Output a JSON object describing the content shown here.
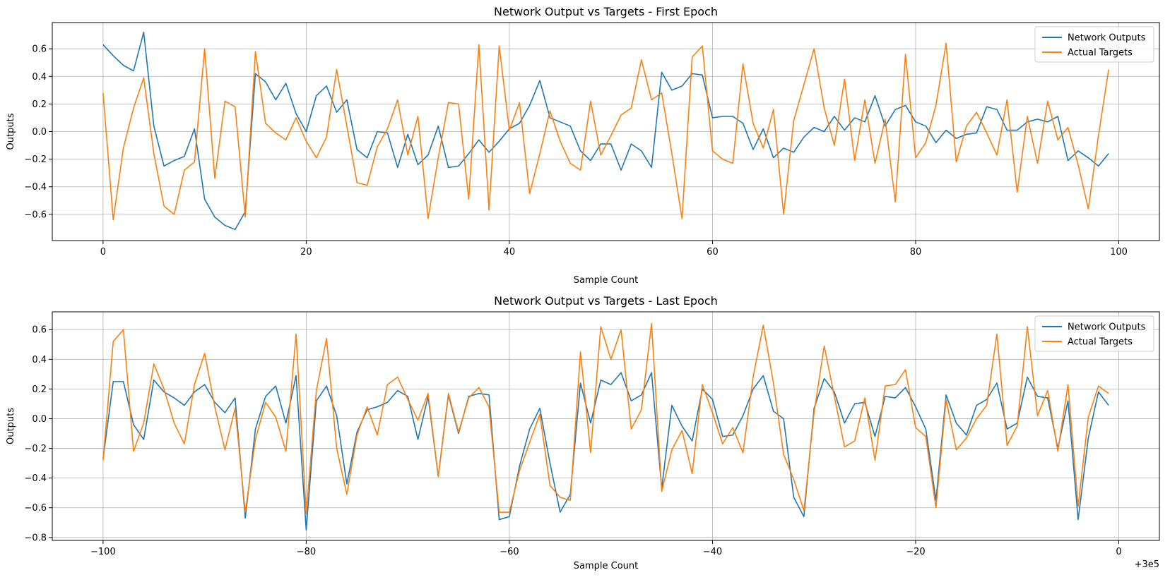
{
  "chart_data": [
    {
      "type": "line",
      "title": "Network Output vs Targets - First Epoch",
      "xlabel": "Sample Count",
      "ylabel": "Outputs",
      "xlim": [
        -5,
        104
      ],
      "ylim": [
        -0.79,
        0.79
      ],
      "xticks": [
        0,
        20,
        40,
        60,
        80,
        100
      ],
      "yticks": [
        -0.6,
        -0.4,
        -0.2,
        0.0,
        0.2,
        0.4,
        0.6
      ],
      "x_offset_label": "",
      "grid": true,
      "legend": "top-right",
      "x": [
        0,
        1,
        2,
        3,
        4,
        5,
        6,
        7,
        8,
        9,
        10,
        11,
        12,
        13,
        14,
        15,
        16,
        17,
        18,
        19,
        20,
        21,
        22,
        23,
        24,
        25,
        26,
        27,
        28,
        29,
        30,
        31,
        32,
        33,
        34,
        35,
        36,
        37,
        38,
        39,
        40,
        41,
        42,
        43,
        44,
        45,
        46,
        47,
        48,
        49,
        50,
        51,
        52,
        53,
        54,
        55,
        56,
        57,
        58,
        59,
        60,
        61,
        62,
        63,
        64,
        65,
        66,
        67,
        68,
        69,
        70,
        71,
        72,
        73,
        74,
        75,
        76,
        77,
        78,
        79,
        80,
        81,
        82,
        83,
        84,
        85,
        86,
        87,
        88,
        89,
        90,
        91,
        92,
        93,
        94,
        95,
        96,
        97,
        98,
        99
      ],
      "series": [
        {
          "name": "Network Outputs",
          "color": "#1f77b4",
          "values": [
            0.63,
            0.55,
            0.48,
            0.44,
            0.72,
            0.04,
            -0.25,
            -0.21,
            -0.18,
            0.02,
            -0.49,
            -0.62,
            -0.68,
            -0.71,
            -0.58,
            0.42,
            0.36,
            0.23,
            0.35,
            0.13,
            0.0,
            0.26,
            0.33,
            0.14,
            0.23,
            -0.13,
            -0.19,
            0.0,
            -0.01,
            -0.26,
            -0.02,
            -0.24,
            -0.17,
            0.04,
            -0.26,
            -0.25,
            -0.16,
            -0.06,
            -0.15,
            -0.07,
            0.02,
            0.06,
            0.19,
            0.37,
            0.1,
            0.07,
            0.04,
            -0.14,
            -0.21,
            -0.09,
            -0.09,
            -0.28,
            -0.09,
            -0.14,
            -0.26,
            0.43,
            0.3,
            0.33,
            0.42,
            0.41,
            0.1,
            0.11,
            0.11,
            0.06,
            -0.13,
            0.02,
            -0.19,
            -0.12,
            -0.15,
            -0.04,
            0.03,
            0.0,
            0.11,
            0.01,
            0.1,
            0.07,
            0.26,
            0.04,
            0.16,
            0.19,
            0.07,
            0.04,
            -0.08,
            0.01,
            -0.05,
            -0.02,
            -0.01,
            0.18,
            0.16,
            0.01,
            0.01,
            0.07,
            0.09,
            0.07,
            0.11,
            -0.21,
            -0.14,
            -0.19,
            -0.25,
            -0.16
          ]
        },
        {
          "name": "Actual Targets",
          "color": "#ff7f0e",
          "values": [
            0.28,
            -0.64,
            -0.12,
            0.17,
            0.39,
            -0.16,
            -0.54,
            -0.6,
            -0.28,
            -0.22,
            0.6,
            -0.34,
            0.22,
            0.18,
            -0.62,
            0.58,
            0.06,
            -0.01,
            -0.06,
            0.1,
            -0.07,
            -0.19,
            -0.04,
            0.45,
            0.04,
            -0.37,
            -0.39,
            -0.11,
            0.02,
            0.23,
            -0.17,
            0.11,
            -0.63,
            -0.19,
            0.21,
            0.2,
            -0.49,
            0.63,
            -0.57,
            0.62,
            0.01,
            0.21,
            -0.45,
            -0.16,
            0.15,
            -0.07,
            -0.23,
            -0.28,
            0.22,
            -0.17,
            -0.03,
            0.12,
            0.17,
            0.52,
            0.23,
            0.28,
            -0.16,
            -0.63,
            0.54,
            0.62,
            -0.14,
            -0.2,
            -0.23,
            0.49,
            0.06,
            -0.12,
            0.16,
            -0.6,
            0.08,
            0.34,
            0.6,
            0.17,
            -0.1,
            0.38,
            -0.21,
            0.23,
            -0.23,
            0.09,
            -0.51,
            0.56,
            -0.19,
            -0.08,
            0.19,
            0.64,
            -0.22,
            0.04,
            0.14,
            -0.01,
            -0.17,
            0.23,
            -0.44,
            0.11,
            -0.23,
            0.22,
            -0.06,
            0.03,
            -0.24,
            -0.56,
            -0.03,
            0.45
          ]
        }
      ]
    },
    {
      "type": "line",
      "title": "Network Output vs Targets - Last Epoch",
      "xlabel": "Sample Count",
      "ylabel": "Outputs",
      "xlim": [
        -105,
        4
      ],
      "ylim": [
        -0.82,
        0.72
      ],
      "xticks": [
        -100,
        -80,
        -60,
        -40,
        -20,
        0
      ],
      "xtick_labels": [
        "−100",
        "−80",
        "−60",
        "−40",
        "−20",
        "0"
      ],
      "yticks": [
        -0.8,
        -0.6,
        -0.4,
        -0.2,
        0.0,
        0.2,
        0.4,
        0.6
      ],
      "x_offset_label": "+3e5",
      "grid": true,
      "legend": "top-right",
      "x": [
        -100,
        -99,
        -98,
        -97,
        -96,
        -95,
        -94,
        -93,
        -92,
        -91,
        -90,
        -89,
        -88,
        -87,
        -86,
        -85,
        -84,
        -83,
        -82,
        -81,
        -80,
        -79,
        -78,
        -77,
        -76,
        -75,
        -74,
        -73,
        -72,
        -71,
        -70,
        -69,
        -68,
        -67,
        -66,
        -65,
        -64,
        -63,
        -62,
        -61,
        -60,
        -59,
        -58,
        -57,
        -56,
        -55,
        -54,
        -53,
        -52,
        -51,
        -50,
        -49,
        -48,
        -47,
        -46,
        -45,
        -44,
        -43,
        -42,
        -41,
        -40,
        -39,
        -38,
        -37,
        -36,
        -35,
        -34,
        -33,
        -32,
        -31,
        -30,
        -29,
        -28,
        -27,
        -26,
        -25,
        -24,
        -23,
        -22,
        -21,
        -20,
        -19,
        -18,
        -17,
        -16,
        -15,
        -14,
        -13,
        -12,
        -11,
        -10,
        -9,
        -8,
        -7,
        -6,
        -5,
        -4,
        -3,
        -2,
        -1
      ],
      "series": [
        {
          "name": "Network Outputs",
          "color": "#1f77b4",
          "values": [
            -0.27,
            0.25,
            0.25,
            -0.04,
            -0.14,
            0.26,
            0.18,
            0.14,
            0.09,
            0.18,
            0.23,
            0.11,
            0.04,
            0.14,
            -0.67,
            -0.07,
            0.15,
            0.22,
            -0.03,
            0.29,
            -0.75,
            0.12,
            0.22,
            0.02,
            -0.44,
            -0.09,
            0.06,
            0.08,
            0.11,
            0.19,
            0.15,
            -0.14,
            0.15,
            -0.39,
            0.16,
            -0.1,
            0.15,
            0.17,
            0.16,
            -0.68,
            -0.66,
            -0.32,
            -0.07,
            0.07,
            -0.3,
            -0.63,
            -0.51,
            0.24,
            -0.03,
            0.26,
            0.23,
            0.31,
            0.12,
            0.16,
            0.31,
            -0.47,
            0.09,
            -0.05,
            -0.15,
            0.2,
            0.13,
            -0.12,
            -0.11,
            0.02,
            0.2,
            0.29,
            0.05,
            0.0,
            -0.53,
            -0.66,
            0.07,
            0.27,
            0.18,
            -0.03,
            0.1,
            0.11,
            -0.12,
            0.15,
            0.14,
            0.21,
            0.08,
            -0.07,
            -0.55,
            0.16,
            -0.03,
            -0.11,
            0.09,
            0.13,
            0.24,
            -0.07,
            -0.03,
            0.28,
            0.15,
            0.14,
            -0.2,
            0.12,
            -0.68,
            -0.13,
            0.18,
            0.09
          ]
        },
        {
          "name": "Actual Targets",
          "color": "#ff7f0e",
          "values": [
            -0.28,
            0.52,
            0.6,
            -0.22,
            -0.03,
            0.37,
            0.2,
            -0.03,
            -0.17,
            0.23,
            0.44,
            0.08,
            -0.21,
            0.07,
            -0.63,
            -0.14,
            0.11,
            0.01,
            -0.22,
            0.57,
            -0.64,
            0.19,
            0.54,
            -0.2,
            -0.51,
            -0.11,
            0.08,
            -0.11,
            0.23,
            0.28,
            0.13,
            -0.01,
            0.17,
            -0.39,
            0.17,
            -0.09,
            0.14,
            0.21,
            0.08,
            -0.63,
            -0.63,
            -0.35,
            -0.16,
            0.03,
            -0.45,
            -0.53,
            -0.55,
            0.45,
            -0.23,
            0.62,
            0.4,
            0.6,
            -0.07,
            0.06,
            0.64,
            -0.49,
            -0.21,
            -0.08,
            -0.37,
            0.23,
            0.04,
            -0.17,
            -0.06,
            -0.23,
            0.28,
            0.63,
            0.24,
            -0.24,
            -0.41,
            -0.62,
            0.04,
            0.49,
            0.15,
            -0.19,
            -0.15,
            0.14,
            -0.28,
            0.22,
            0.23,
            0.33,
            -0.06,
            -0.12,
            -0.6,
            0.13,
            -0.21,
            -0.13,
            0.0,
            0.09,
            0.57,
            -0.18,
            -0.05,
            0.62,
            0.02,
            0.19,
            -0.22,
            0.23,
            -0.59,
            0.01,
            0.22,
            0.17
          ]
        }
      ]
    }
  ]
}
